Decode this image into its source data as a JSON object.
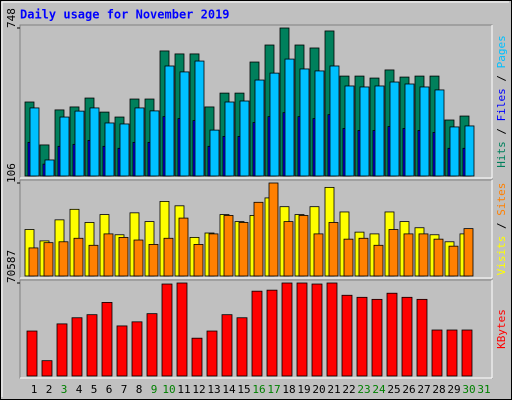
{
  "chart_data": [
    {
      "type": "bar",
      "title": "Daily usage for November 2019",
      "categories": [
        "1",
        "2",
        "3",
        "4",
        "5",
        "6",
        "7",
        "8",
        "9",
        "10",
        "11",
        "12",
        "13",
        "14",
        "15",
        "16",
        "17",
        "18",
        "19",
        "20",
        "21",
        "22",
        "23",
        "24",
        "25",
        "26",
        "27",
        "28",
        "29",
        "30",
        "31"
      ],
      "category_colors": [
        "#000000",
        "#000000",
        "#008000",
        "#000000",
        "#000000",
        "#000000",
        "#000000",
        "#000000",
        "#008000",
        "#008000",
        "#000000",
        "#000000",
        "#000000",
        "#000000",
        "#000000",
        "#008000",
        "#008000",
        "#000000",
        "#000000",
        "#000000",
        "#000000",
        "#000000",
        "#008000",
        "#008000",
        "#000000",
        "#000000",
        "#000000",
        "#000000",
        "#000000",
        "#008000",
        "#008000"
      ],
      "legend_separator": " / ",
      "ylim": [
        0,
        748
      ],
      "yticks": [
        748
      ],
      "series": [
        {
          "name": "Hits",
          "color": "#00805c",
          "values": [
            374,
            157,
            334,
            349,
            394,
            323,
            298,
            389,
            389,
            632,
            617,
            617,
            349,
            419,
            419,
            576,
            662,
            748,
            662,
            647,
            733,
            505,
            505,
            495,
            536,
            500,
            505,
            505,
            283,
            303,
            null
          ]
        },
        {
          "name": "Files",
          "color": "#0000ff",
          "values": [
            170,
            60,
            150,
            160,
            180,
            150,
            140,
            170,
            170,
            300,
            290,
            280,
            150,
            200,
            200,
            270,
            300,
            320,
            300,
            290,
            310,
            240,
            230,
            230,
            250,
            240,
            230,
            220,
            140,
            140,
            null
          ]
        },
        {
          "name": "Pages",
          "color": "#00c0ff",
          "values": [
            344,
            81,
            298,
            328,
            344,
            268,
            263,
            344,
            329,
            556,
            526,
            581,
            232,
            374,
            379,
            485,
            520,
            591,
            541,
            531,
            556,
            455,
            450,
            455,
            475,
            465,
            450,
            435,
            248,
            253,
            null
          ]
        }
      ]
    },
    {
      "type": "bar",
      "ylim": [
        0,
        106
      ],
      "yticks": [
        106
      ],
      "series": [
        {
          "name": "Visits",
          "color": "#ffff00",
          "values": [
            53,
            40,
            64,
            76,
            61,
            70,
            47,
            72,
            62,
            85,
            80,
            44,
            49,
            70,
            62,
            69,
            89,
            79,
            70,
            79,
            101,
            73,
            50,
            48,
            73,
            62,
            55,
            47,
            39,
            48,
            null
          ]
        },
        {
          "name": "Sites",
          "color": "#ff8000",
          "values": [
            32,
            38,
            39,
            43,
            35,
            48,
            44,
            41,
            36,
            43,
            66,
            36,
            48,
            69,
            61,
            84,
            106,
            62,
            69,
            48,
            61,
            42,
            43,
            35,
            53,
            48,
            48,
            42,
            34,
            54,
            null
          ]
        }
      ]
    },
    {
      "type": "bar",
      "ylim": [
        0,
        70587
      ],
      "yticks": [
        70587
      ],
      "series": [
        {
          "name": "KBytes",
          "color": "#ff0000",
          "values": [
            34131,
            11636,
            39561,
            44214,
            46542,
            55850,
            38010,
            41113,
            47318,
            69811,
            70587,
            28700,
            34131,
            46542,
            44214,
            64381,
            65157,
            70587,
            70587,
            69811,
            70587,
            61279,
            59728,
            58176,
            62830,
            59728,
            58176,
            34907,
            34907,
            34907,
            null
          ]
        }
      ]
    }
  ]
}
